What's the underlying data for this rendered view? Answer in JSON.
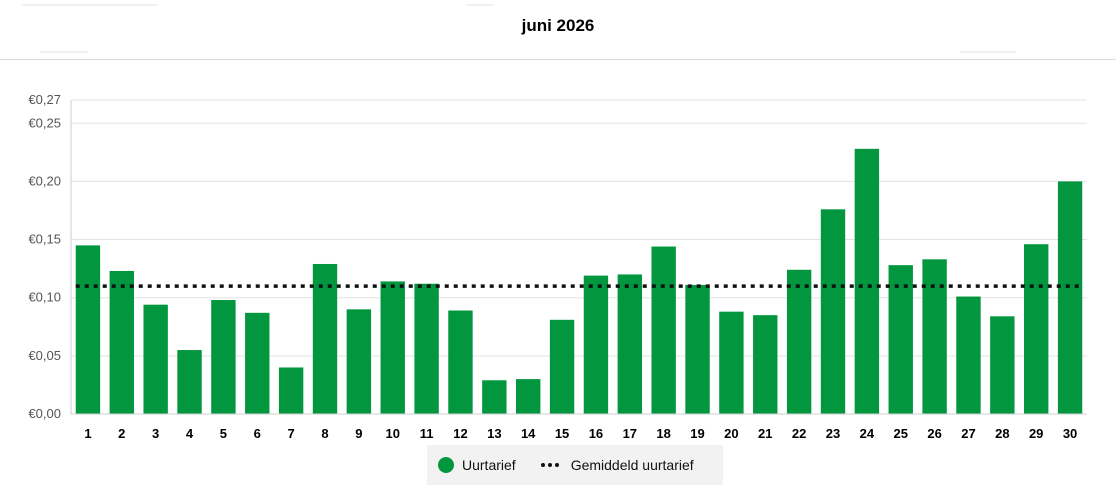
{
  "header": {
    "title": "juni 2026"
  },
  "colors": {
    "bar": "#02973f",
    "average_line": "#111111",
    "grid": "#e3e3e3"
  },
  "legend": {
    "bar_label": "Uurtarief",
    "line_label": "Gemiddeld uurtarief"
  },
  "chart_data": {
    "type": "bar",
    "title": "juni 2026",
    "xlabel": "",
    "ylabel": "",
    "categories": [
      "1",
      "2",
      "3",
      "4",
      "5",
      "6",
      "7",
      "8",
      "9",
      "10",
      "11",
      "12",
      "13",
      "14",
      "15",
      "16",
      "17",
      "18",
      "19",
      "20",
      "21",
      "22",
      "23",
      "24",
      "25",
      "26",
      "27",
      "28",
      "29",
      "30"
    ],
    "series": [
      {
        "name": "Uurtarief",
        "type": "bar",
        "values": [
          0.145,
          0.123,
          0.094,
          0.055,
          0.098,
          0.087,
          0.04,
          0.129,
          0.09,
          0.114,
          0.112,
          0.089,
          0.029,
          0.03,
          0.081,
          0.119,
          0.12,
          0.144,
          0.111,
          0.088,
          0.085,
          0.124,
          0.176,
          0.228,
          0.128,
          0.133,
          0.101,
          0.084,
          0.146,
          0.2
        ]
      },
      {
        "name": "Gemiddeld uurtarief",
        "type": "line",
        "style": "dotted",
        "value": 0.11
      }
    ],
    "ylim": [
      0,
      0.27
    ],
    "yticks": [
      0,
      0.05,
      0.1,
      0.15,
      0.2,
      0.25,
      0.27
    ],
    "ytick_labels": [
      "€0,00",
      "€0,05",
      "€0,10",
      "€0,15",
      "€0,20",
      "€0,25",
      "€0,27"
    ],
    "grid": true,
    "legend_position": "bottom-center"
  }
}
